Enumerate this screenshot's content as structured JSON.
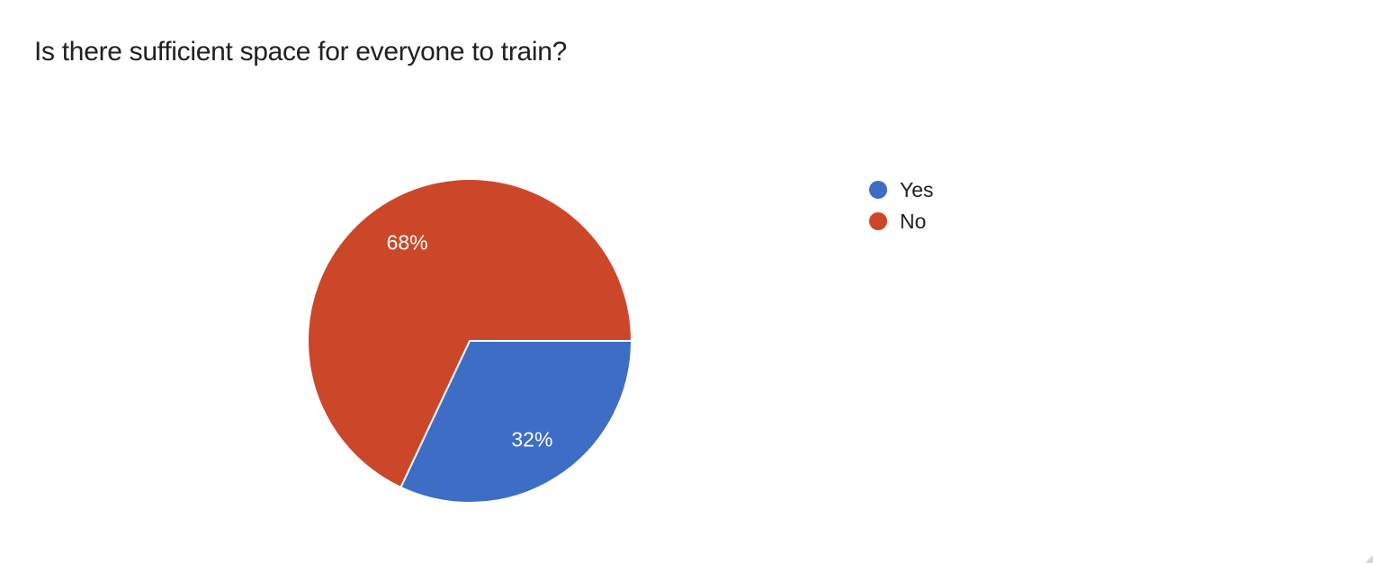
{
  "page": {
    "background_color": "#ffffff"
  },
  "question": {
    "title": "Is there sufficient space for everyone to train?"
  },
  "chart_data": {
    "type": "pie",
    "title": "Is there sufficient space for everyone to train?",
    "categories": [
      "Yes",
      "No"
    ],
    "values": [
      32,
      68
    ],
    "unit": "percent",
    "display_labels": [
      "32%",
      "68%"
    ],
    "colors": [
      "#3d6dc5",
      "#cc4729"
    ],
    "slice_label_color": "#ffffff",
    "legend_position": "right",
    "start_angle_deg": 0,
    "direction": "clockwise"
  },
  "legend": {
    "items": [
      {
        "label": "Yes",
        "color": "#3d6dc5"
      },
      {
        "label": "No",
        "color": "#cc4729"
      }
    ]
  }
}
